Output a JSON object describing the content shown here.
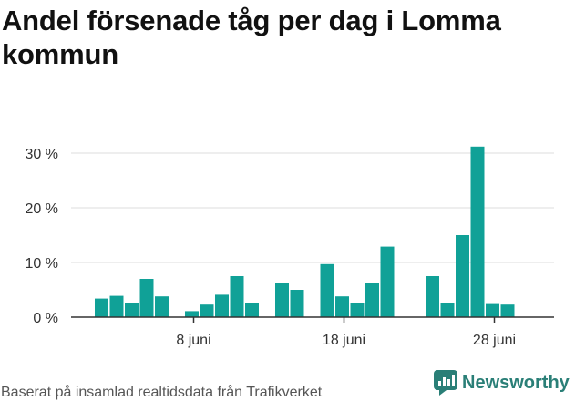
{
  "title": "Andel försenade tåg per dag i Lomma kommun",
  "source": "Baserat på insamlad realtidsdata från Trafikverket",
  "brand": {
    "name": "Newsworthy",
    "color": "#2a7f77"
  },
  "chart_data": {
    "type": "bar",
    "title": "Andel försenade tåg per dag i Lomma kommun",
    "xlabel": "",
    "ylabel": "",
    "y_unit": "%",
    "ylim": [
      0,
      33
    ],
    "yticks": [
      0,
      10,
      20,
      30
    ],
    "ytick_labels": [
      "0 %",
      "10 %",
      "20 %",
      "30 %"
    ],
    "grid": true,
    "bar_color": "#10a197",
    "x_first_day": "1 juni",
    "x_last_day": "30 juni",
    "xtick_days": [
      8,
      18,
      28
    ],
    "xtick_labels": [
      "8 juni",
      "18 juni",
      "28 juni"
    ],
    "categories": [
      "2 juni",
      "3 juni",
      "4 juni",
      "5 juni",
      "6 juni",
      "8 juni",
      "9 juni",
      "10 juni",
      "11 juni",
      "12 juni",
      "14 juni",
      "15 juni",
      "17 juni",
      "18 juni",
      "19 juni",
      "20 juni",
      "21 juni",
      "24 juni",
      "25 juni",
      "26 juni",
      "27 juni",
      "28 juni",
      "29 juni"
    ],
    "days": [
      2,
      3,
      4,
      5,
      6,
      8,
      9,
      10,
      11,
      12,
      14,
      15,
      17,
      18,
      19,
      20,
      21,
      24,
      25,
      26,
      27,
      28,
      29
    ],
    "values": [
      3.4,
      3.9,
      2.6,
      7.0,
      3.8,
      1.1,
      2.3,
      4.1,
      7.5,
      2.5,
      6.3,
      5.0,
      9.7,
      3.8,
      2.5,
      6.3,
      12.9,
      7.5,
      2.5,
      15.0,
      31.2,
      2.4,
      2.3
    ]
  }
}
